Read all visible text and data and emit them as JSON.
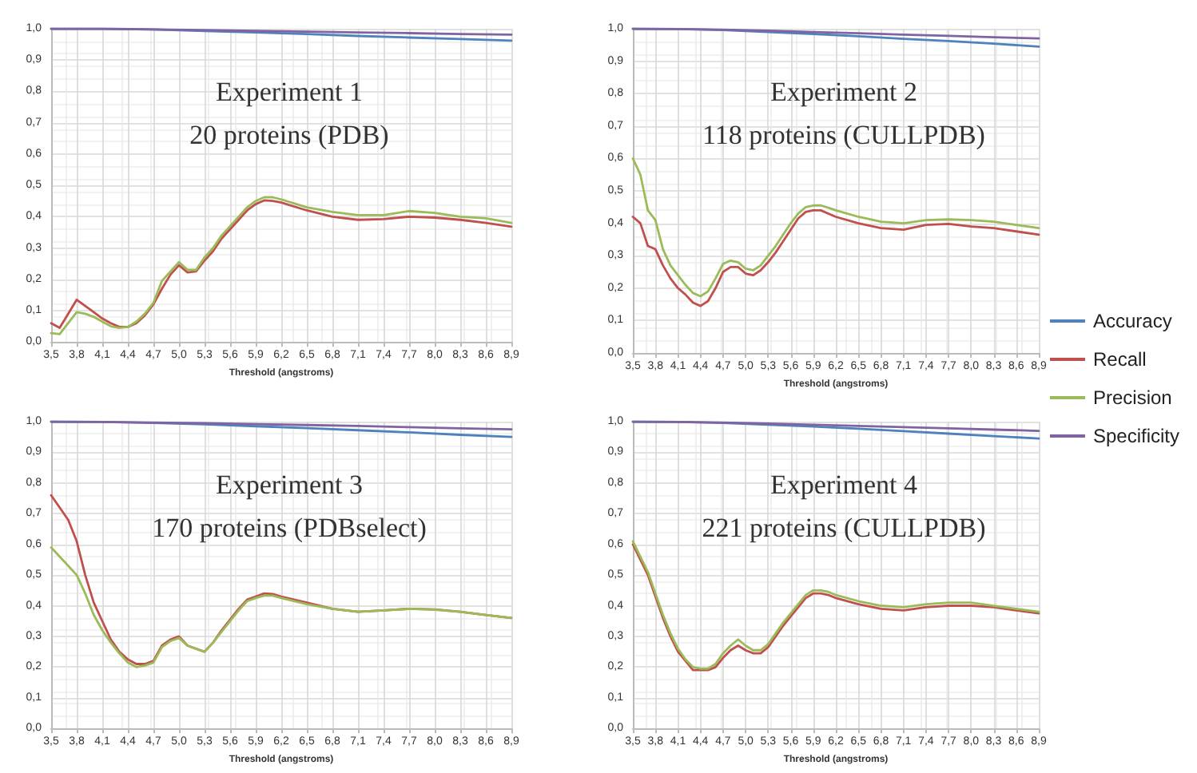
{
  "chart_data": [
    {
      "type": "line",
      "title": "Experiment 1",
      "subtitle": "20 proteins (PDB)",
      "xlabel": "Threshold (angstroms)",
      "grid": true,
      "marker": "none",
      "x": [
        3.5,
        3.6,
        3.7,
        3.8,
        3.9,
        4.0,
        4.1,
        4.2,
        4.3,
        4.4,
        4.5,
        4.6,
        4.7,
        4.8,
        4.9,
        5.0,
        5.1,
        5.2,
        5.3,
        5.4,
        5.5,
        5.6,
        5.7,
        5.8,
        5.9,
        6.0,
        6.1,
        6.2,
        6.5,
        6.8,
        7.1,
        7.4,
        7.7,
        8.0,
        8.3,
        8.6,
        8.9
      ],
      "xlim": [
        3.5,
        8.9
      ],
      "ylim": [
        0,
        1
      ],
      "xticks": [
        {
          "value": 3.5,
          "label": "3,5"
        },
        {
          "value": 3.8,
          "label": "3,8"
        },
        {
          "value": 4.1,
          "label": "4,1"
        },
        {
          "value": 4.4,
          "label": "4,4"
        },
        {
          "value": 4.7,
          "label": "4,7"
        },
        {
          "value": 5.0,
          "label": "5,0"
        },
        {
          "value": 5.3,
          "label": "5,3"
        },
        {
          "value": 5.6,
          "label": "5,6"
        },
        {
          "value": 5.9,
          "label": "5,9"
        },
        {
          "value": 6.2,
          "label": "6,2"
        },
        {
          "value": 6.5,
          "label": "6,5"
        },
        {
          "value": 6.8,
          "label": "6,8"
        },
        {
          "value": 7.1,
          "label": "7,1"
        },
        {
          "value": 7.4,
          "label": "7,4"
        },
        {
          "value": 7.7,
          "label": "7,7"
        },
        {
          "value": 8.0,
          "label": "8,0"
        },
        {
          "value": 8.3,
          "label": "8,3"
        },
        {
          "value": 8.6,
          "label": "8,6"
        },
        {
          "value": 8.9,
          "label": "8,9"
        }
      ],
      "yticks": [
        {
          "value": 0,
          "label": "0,0"
        },
        {
          "value": 0.1,
          "label": "0,1"
        },
        {
          "value": 0.2,
          "label": "0,2"
        },
        {
          "value": 0.3,
          "label": "0,3"
        },
        {
          "value": 0.4,
          "label": "0,4"
        },
        {
          "value": 0.5,
          "label": "0,5"
        },
        {
          "value": 0.6,
          "label": "0,6"
        },
        {
          "value": 0.7,
          "label": "0,7"
        },
        {
          "value": 0.8,
          "label": "0,8"
        },
        {
          "value": 0.9,
          "label": "0,9"
        },
        {
          "value": 1,
          "label": "1,0"
        }
      ],
      "series": [
        {
          "color": "#4f81bd",
          "x": [
            3.5,
            4.1,
            4.7,
            5.3,
            5.9,
            6.5,
            7.1,
            7.7,
            8.3,
            8.9
          ],
          "values": [
            1.0,
            1.0,
            0.998,
            0.993,
            0.988,
            0.983,
            0.977,
            0.972,
            0.967,
            0.962
          ]
        },
        {
          "color": "#c0504d",
          "values": [
            0.06,
            0.045,
            0.09,
            0.135,
            0.115,
            0.095,
            0.075,
            0.06,
            0.048,
            0.048,
            0.06,
            0.085,
            0.12,
            0.17,
            0.215,
            0.245,
            0.222,
            0.225,
            0.26,
            0.29,
            0.33,
            0.36,
            0.39,
            0.42,
            0.44,
            0.452,
            0.45,
            0.445,
            0.42,
            0.4,
            0.39,
            0.392,
            0.4,
            0.397,
            0.39,
            0.38,
            0.368
          ]
        },
        {
          "color": "#9bbb59",
          "values": [
            0.028,
            0.025,
            0.06,
            0.095,
            0.09,
            0.08,
            0.065,
            0.05,
            0.045,
            0.048,
            0.065,
            0.09,
            0.125,
            0.195,
            0.225,
            0.255,
            0.23,
            0.23,
            0.27,
            0.3,
            0.34,
            0.37,
            0.4,
            0.43,
            0.45,
            0.462,
            0.462,
            0.455,
            0.43,
            0.415,
            0.405,
            0.405,
            0.418,
            0.412,
            0.4,
            0.395,
            0.38
          ]
        },
        {
          "color": "#8064a2",
          "x": [
            3.5,
            4.1,
            4.7,
            5.3,
            5.9,
            6.5,
            7.1,
            7.7,
            8.3,
            8.9
          ],
          "values": [
            1.0,
            1.0,
            0.998,
            0.996,
            0.993,
            0.991,
            0.988,
            0.986,
            0.983,
            0.981
          ]
        }
      ]
    },
    {
      "type": "line",
      "title": "Experiment 2",
      "subtitle": "118 proteins (CULLPDB)",
      "xlabel": "Threshold (angstroms)",
      "grid": true,
      "marker": "none",
      "legend": "right",
      "x": [
        3.5,
        3.6,
        3.7,
        3.8,
        3.9,
        4.0,
        4.1,
        4.2,
        4.3,
        4.4,
        4.5,
        4.6,
        4.7,
        4.8,
        4.9,
        5.0,
        5.1,
        5.2,
        5.3,
        5.4,
        5.5,
        5.6,
        5.7,
        5.8,
        5.9,
        6.0,
        6.1,
        6.2,
        6.5,
        6.8,
        7.1,
        7.4,
        7.7,
        8.0,
        8.3,
        8.6,
        8.9
      ],
      "xlim": [
        3.5,
        8.9
      ],
      "ylim": [
        0,
        1
      ],
      "xticks": [
        {
          "value": 3.5,
          "label": "3,5"
        },
        {
          "value": 3.8,
          "label": "3,8"
        },
        {
          "value": 4.1,
          "label": "4,1"
        },
        {
          "value": 4.4,
          "label": "4,4"
        },
        {
          "value": 4.7,
          "label": "4,7"
        },
        {
          "value": 5.0,
          "label": "5,0"
        },
        {
          "value": 5.3,
          "label": "5,3"
        },
        {
          "value": 5.6,
          "label": "5,6"
        },
        {
          "value": 5.9,
          "label": "5,9"
        },
        {
          "value": 6.2,
          "label": "6,2"
        },
        {
          "value": 6.5,
          "label": "6,5"
        },
        {
          "value": 6.8,
          "label": "6,8"
        },
        {
          "value": 7.1,
          "label": "7,1"
        },
        {
          "value": 7.4,
          "label": "7,4"
        },
        {
          "value": 7.7,
          "label": "7,7"
        },
        {
          "value": 8.0,
          "label": "8,0"
        },
        {
          "value": 8.3,
          "label": "8,3"
        },
        {
          "value": 8.6,
          "label": "8,6"
        },
        {
          "value": 8.9,
          "label": "8,9"
        }
      ],
      "yticks": [
        {
          "value": 0,
          "label": "0,0"
        },
        {
          "value": 0.1,
          "label": "0,1"
        },
        {
          "value": 0.2,
          "label": "0,2"
        },
        {
          "value": 0.3,
          "label": "0,3"
        },
        {
          "value": 0.4,
          "label": "0,4"
        },
        {
          "value": 0.5,
          "label": "0,5"
        },
        {
          "value": 0.6,
          "label": "0,6"
        },
        {
          "value": 0.7,
          "label": "0,7"
        },
        {
          "value": 0.8,
          "label": "0,8"
        },
        {
          "value": 0.9,
          "label": "0,9"
        },
        {
          "value": 1,
          "label": "1,0"
        }
      ],
      "series": [
        {
          "name": "Accuracy",
          "color": "#4f81bd",
          "x": [
            3.5,
            4.1,
            4.7,
            5.3,
            5.9,
            6.5,
            7.1,
            7.7,
            8.3,
            8.9
          ],
          "values": [
            1.0,
            0.999,
            0.996,
            0.99,
            0.984,
            0.977,
            0.969,
            0.962,
            0.954,
            0.945
          ]
        },
        {
          "name": "Recall",
          "color": "#c0504d",
          "values": [
            0.42,
            0.4,
            0.33,
            0.32,
            0.27,
            0.23,
            0.2,
            0.18,
            0.155,
            0.145,
            0.16,
            0.2,
            0.25,
            0.265,
            0.265,
            0.245,
            0.24,
            0.255,
            0.28,
            0.31,
            0.345,
            0.38,
            0.415,
            0.435,
            0.44,
            0.44,
            0.43,
            0.42,
            0.4,
            0.385,
            0.38,
            0.395,
            0.398,
            0.39,
            0.385,
            0.375,
            0.365
          ]
        },
        {
          "name": "Precision",
          "color": "#9bbb59",
          "values": [
            0.6,
            0.55,
            0.44,
            0.41,
            0.32,
            0.27,
            0.24,
            0.21,
            0.185,
            0.175,
            0.19,
            0.23,
            0.275,
            0.285,
            0.28,
            0.26,
            0.255,
            0.27,
            0.3,
            0.33,
            0.365,
            0.4,
            0.43,
            0.45,
            0.455,
            0.455,
            0.448,
            0.44,
            0.42,
            0.405,
            0.4,
            0.41,
            0.412,
            0.41,
            0.405,
            0.395,
            0.385
          ]
        },
        {
          "name": "Specificity",
          "color": "#8064a2",
          "x": [
            3.5,
            4.1,
            4.7,
            5.3,
            5.9,
            6.5,
            7.1,
            7.7,
            8.3,
            8.9
          ],
          "values": [
            1.0,
            0.999,
            0.997,
            0.994,
            0.99,
            0.986,
            0.982,
            0.978,
            0.974,
            0.97
          ]
        }
      ]
    },
    {
      "type": "line",
      "title": "Experiment 3",
      "subtitle": "170 proteins (PDBselect)",
      "xlabel": "Threshold (angstroms)",
      "grid": true,
      "marker": "none",
      "x": [
        3.5,
        3.6,
        3.7,
        3.8,
        3.9,
        4.0,
        4.1,
        4.2,
        4.3,
        4.4,
        4.5,
        4.6,
        4.7,
        4.8,
        4.9,
        5.0,
        5.1,
        5.2,
        5.3,
        5.4,
        5.5,
        5.6,
        5.7,
        5.8,
        5.9,
        6.0,
        6.1,
        6.2,
        6.5,
        6.8,
        7.1,
        7.4,
        7.7,
        8.0,
        8.3,
        8.6,
        8.9
      ],
      "xlim": [
        3.5,
        8.9
      ],
      "ylim": [
        0,
        1
      ],
      "xticks": [
        {
          "value": 3.5,
          "label": "3,5"
        },
        {
          "value": 3.8,
          "label": "3,8"
        },
        {
          "value": 4.1,
          "label": "4,1"
        },
        {
          "value": 4.4,
          "label": "4,4"
        },
        {
          "value": 4.7,
          "label": "4,7"
        },
        {
          "value": 5.0,
          "label": "5,0"
        },
        {
          "value": 5.3,
          "label": "5,3"
        },
        {
          "value": 5.6,
          "label": "5,6"
        },
        {
          "value": 5.9,
          "label": "5,9"
        },
        {
          "value": 6.2,
          "label": "6,2"
        },
        {
          "value": 6.5,
          "label": "6,5"
        },
        {
          "value": 6.8,
          "label": "6,8"
        },
        {
          "value": 7.1,
          "label": "7,1"
        },
        {
          "value": 7.4,
          "label": "7,4"
        },
        {
          "value": 7.7,
          "label": "7,7"
        },
        {
          "value": 8.0,
          "label": "8,0"
        },
        {
          "value": 8.3,
          "label": "8,3"
        },
        {
          "value": 8.6,
          "label": "8,6"
        },
        {
          "value": 8.9,
          "label": "8,9"
        }
      ],
      "yticks": [
        {
          "value": 0,
          "label": "0,0"
        },
        {
          "value": 0.1,
          "label": "0,1"
        },
        {
          "value": 0.2,
          "label": "0,2"
        },
        {
          "value": 0.3,
          "label": "0,3"
        },
        {
          "value": 0.4,
          "label": "0,4"
        },
        {
          "value": 0.5,
          "label": "0,5"
        },
        {
          "value": 0.6,
          "label": "0,6"
        },
        {
          "value": 0.7,
          "label": "0,7"
        },
        {
          "value": 0.8,
          "label": "0,8"
        },
        {
          "value": 0.9,
          "label": "0,9"
        },
        {
          "value": 1,
          "label": "1,0"
        }
      ],
      "series": [
        {
          "color": "#4f81bd",
          "x": [
            3.5,
            4.1,
            4.7,
            5.3,
            5.9,
            6.5,
            7.1,
            7.7,
            8.3,
            8.9
          ],
          "values": [
            1.0,
            0.999,
            0.996,
            0.991,
            0.985,
            0.979,
            0.972,
            0.965,
            0.957,
            0.95
          ]
        },
        {
          "color": "#c0504d",
          "values": [
            0.76,
            0.72,
            0.68,
            0.61,
            0.5,
            0.41,
            0.35,
            0.29,
            0.25,
            0.225,
            0.21,
            0.21,
            0.22,
            0.27,
            0.29,
            0.3,
            0.27,
            0.26,
            0.25,
            0.28,
            0.32,
            0.355,
            0.39,
            0.42,
            0.43,
            0.44,
            0.438,
            0.43,
            0.41,
            0.39,
            0.38,
            0.385,
            0.39,
            0.388,
            0.38,
            0.37,
            0.36
          ]
        },
        {
          "color": "#9bbb59",
          "values": [
            0.59,
            0.56,
            0.53,
            0.5,
            0.44,
            0.37,
            0.32,
            0.28,
            0.245,
            0.215,
            0.2,
            0.205,
            0.215,
            0.265,
            0.285,
            0.295,
            0.27,
            0.26,
            0.25,
            0.28,
            0.315,
            0.35,
            0.385,
            0.415,
            0.425,
            0.433,
            0.433,
            0.425,
            0.405,
            0.39,
            0.38,
            0.385,
            0.39,
            0.387,
            0.38,
            0.37,
            0.36
          ]
        },
        {
          "color": "#8064a2",
          "x": [
            3.5,
            4.1,
            4.7,
            5.3,
            5.9,
            6.5,
            7.1,
            7.7,
            8.3,
            8.9
          ],
          "values": [
            1.0,
            0.999,
            0.997,
            0.995,
            0.992,
            0.989,
            0.986,
            0.982,
            0.978,
            0.975
          ]
        }
      ]
    },
    {
      "type": "line",
      "title": "Experiment 4",
      "subtitle": "221 proteins (CULLPDB)",
      "xlabel": "Threshold (angstroms)",
      "grid": true,
      "marker": "none",
      "x": [
        3.5,
        3.6,
        3.7,
        3.8,
        3.9,
        4.0,
        4.1,
        4.2,
        4.3,
        4.4,
        4.5,
        4.6,
        4.7,
        4.8,
        4.9,
        5.0,
        5.1,
        5.2,
        5.3,
        5.4,
        5.5,
        5.6,
        5.7,
        5.8,
        5.9,
        6.0,
        6.1,
        6.2,
        6.5,
        6.8,
        7.1,
        7.4,
        7.7,
        8.0,
        8.3,
        8.6,
        8.9
      ],
      "xlim": [
        3.5,
        8.9
      ],
      "ylim": [
        0,
        1
      ],
      "xticks": [
        {
          "value": 3.5,
          "label": "3,5"
        },
        {
          "value": 3.8,
          "label": "3,8"
        },
        {
          "value": 4.1,
          "label": "4,1"
        },
        {
          "value": 4.4,
          "label": "4,4"
        },
        {
          "value": 4.7,
          "label": "4,7"
        },
        {
          "value": 5.0,
          "label": "5,0"
        },
        {
          "value": 5.3,
          "label": "5,3"
        },
        {
          "value": 5.6,
          "label": "5,6"
        },
        {
          "value": 5.9,
          "label": "5,9"
        },
        {
          "value": 6.2,
          "label": "6,2"
        },
        {
          "value": 6.5,
          "label": "6,5"
        },
        {
          "value": 6.8,
          "label": "6,8"
        },
        {
          "value": 7.1,
          "label": "7,1"
        },
        {
          "value": 7.4,
          "label": "7,4"
        },
        {
          "value": 7.7,
          "label": "7,7"
        },
        {
          "value": 8.0,
          "label": "8,0"
        },
        {
          "value": 8.3,
          "label": "8,3"
        },
        {
          "value": 8.6,
          "label": "8,6"
        },
        {
          "value": 8.9,
          "label": "8,9"
        }
      ],
      "yticks": [
        {
          "value": 0,
          "label": "0,0"
        },
        {
          "value": 0.1,
          "label": "0,1"
        },
        {
          "value": 0.2,
          "label": "0,2"
        },
        {
          "value": 0.3,
          "label": "0,3"
        },
        {
          "value": 0.4,
          "label": "0,4"
        },
        {
          "value": 0.5,
          "label": "0,5"
        },
        {
          "value": 0.6,
          "label": "0,6"
        },
        {
          "value": 0.7,
          "label": "0,7"
        },
        {
          "value": 0.8,
          "label": "0,8"
        },
        {
          "value": 0.9,
          "label": "0,9"
        },
        {
          "value": 1,
          "label": "1,0"
        }
      ],
      "series": [
        {
          "color": "#4f81bd",
          "x": [
            3.5,
            4.1,
            4.7,
            5.3,
            5.9,
            6.5,
            7.1,
            7.7,
            8.3,
            8.9
          ],
          "values": [
            1.0,
            0.999,
            0.996,
            0.99,
            0.984,
            0.977,
            0.969,
            0.961,
            0.953,
            0.945
          ]
        },
        {
          "color": "#c0504d",
          "values": [
            0.6,
            0.55,
            0.5,
            0.43,
            0.36,
            0.3,
            0.25,
            0.22,
            0.19,
            0.19,
            0.19,
            0.2,
            0.23,
            0.255,
            0.27,
            0.255,
            0.245,
            0.245,
            0.265,
            0.3,
            0.335,
            0.365,
            0.395,
            0.425,
            0.44,
            0.44,
            0.435,
            0.425,
            0.405,
            0.39,
            0.385,
            0.395,
            0.4,
            0.4,
            0.395,
            0.385,
            0.375
          ]
        },
        {
          "color": "#9bbb59",
          "values": [
            0.61,
            0.56,
            0.51,
            0.44,
            0.37,
            0.31,
            0.26,
            0.225,
            0.2,
            0.195,
            0.195,
            0.21,
            0.245,
            0.27,
            0.29,
            0.27,
            0.255,
            0.255,
            0.275,
            0.31,
            0.345,
            0.375,
            0.405,
            0.435,
            0.45,
            0.45,
            0.445,
            0.435,
            0.415,
            0.4,
            0.395,
            0.405,
            0.41,
            0.41,
            0.4,
            0.39,
            0.38
          ]
        },
        {
          "color": "#8064a2",
          "x": [
            3.5,
            4.1,
            4.7,
            5.3,
            5.9,
            6.5,
            7.1,
            7.7,
            8.3,
            8.9
          ],
          "values": [
            1.0,
            0.999,
            0.997,
            0.994,
            0.99,
            0.986,
            0.982,
            0.978,
            0.974,
            0.97
          ]
        }
      ]
    }
  ]
}
